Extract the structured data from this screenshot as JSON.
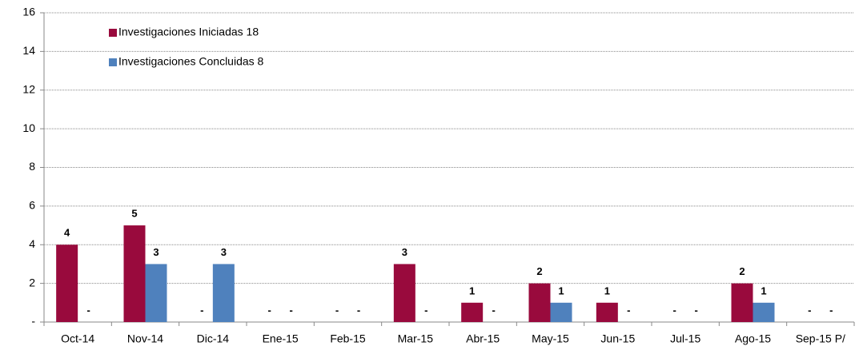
{
  "chart_data": {
    "type": "bar",
    "categories": [
      "Oct-14",
      "Nov-14",
      "Dic-14",
      "Ene-15",
      "Feb-15",
      "Mar-15",
      "Abr-15",
      "May-15",
      "Jun-15",
      "Jul-15",
      "Ago-15",
      "Sep-15 P/"
    ],
    "series": [
      {
        "name": "Investigaciones Iniciadas 18",
        "color": "#990a3d",
        "values": [
          4,
          5,
          0,
          0,
          0,
          3,
          1,
          2,
          1,
          0,
          2,
          0
        ],
        "value_labels": [
          "4",
          "5",
          "-",
          "-",
          "-",
          "3",
          "1",
          "2",
          "1",
          "-",
          "2",
          "-"
        ]
      },
      {
        "name": "Investigaciones Concluidas 8",
        "color": "#4f81bd",
        "values": [
          0,
          3,
          3,
          0,
          0,
          0,
          0,
          1,
          0,
          0,
          1,
          0
        ],
        "value_labels": [
          "-",
          "3",
          "3",
          "-",
          "-",
          "-",
          "-",
          "1",
          "-",
          "-",
          "1",
          "-"
        ]
      }
    ],
    "ylim": [
      0,
      16
    ],
    "yticks": [
      {
        "value": 0,
        "label": "-"
      },
      2,
      4,
      6,
      8,
      10,
      12,
      14,
      16
    ],
    "grid": true,
    "legend": "top-left"
  }
}
